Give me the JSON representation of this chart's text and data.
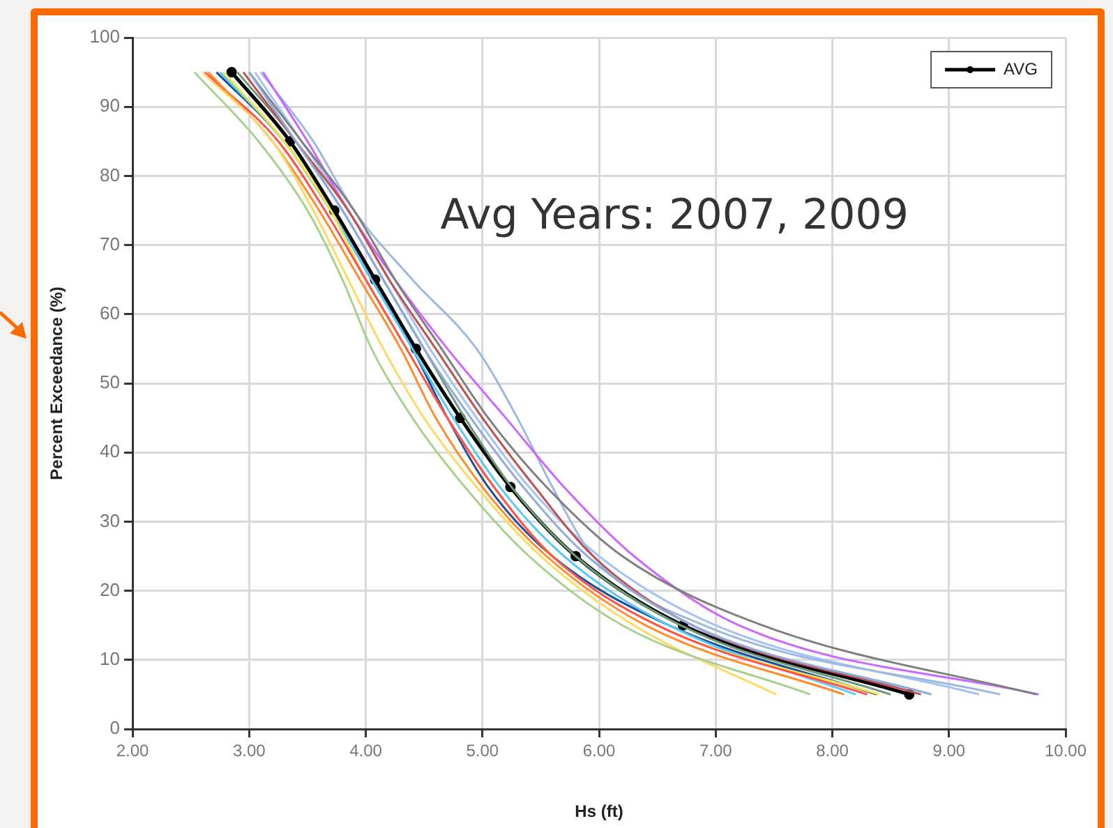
{
  "chart_data": {
    "type": "line",
    "xlabel": "Hs (ft)",
    "ylabel": "Percent Exceedance (%)",
    "annotations": [
      "Avg Years: 2007, 2009"
    ],
    "xlim": [
      2,
      10
    ],
    "xticks": [
      {
        "value": 2,
        "label": "2.00"
      },
      {
        "value": 3,
        "label": "3.00"
      },
      {
        "value": 4,
        "label": "4.00"
      },
      {
        "value": 5,
        "label": "5.00"
      },
      {
        "value": 6,
        "label": "6.00"
      },
      {
        "value": 7,
        "label": "7.00"
      },
      {
        "value": 8,
        "label": "8.00"
      },
      {
        "value": 9,
        "label": "9.00"
      },
      {
        "value": 10,
        "label": "10.00"
      }
    ],
    "ylim": [
      0,
      100
    ],
    "yticks": [
      0,
      10,
      20,
      30,
      40,
      50,
      60,
      70,
      80,
      90,
      100
    ],
    "grid": true,
    "legend": "top right",
    "series": [
      {
        "color": "#a9d18e",
        "x": [
          2.53,
          3.08,
          3.5,
          3.8,
          4.05,
          4.4,
          4.85,
          5.4,
          6.2,
          7.81
        ],
        "values": [
          95,
          85,
          75,
          65,
          55,
          45,
          35,
          25,
          15,
          5
        ]
      },
      {
        "color": "#ffd966",
        "x": [
          2.6,
          3.2,
          3.55,
          3.85,
          4.15,
          4.5,
          4.95,
          5.5,
          6.3,
          7.52
        ],
        "values": [
          95,
          85,
          75,
          65,
          55,
          45,
          35,
          25,
          15,
          5
        ]
      },
      {
        "color": "#ff8c2a",
        "x": [
          2.65,
          3.2,
          3.6,
          3.95,
          4.3,
          4.6,
          5.0,
          5.55,
          6.4,
          8.1
        ],
        "values": [
          95,
          85,
          75,
          65,
          55,
          45,
          35,
          25,
          15,
          5
        ]
      },
      {
        "color": "#ff5050",
        "x": [
          2.62,
          3.25,
          3.65,
          4.0,
          4.35,
          4.7,
          5.1,
          5.6,
          6.5,
          8.3
        ],
        "values": [
          95,
          85,
          75,
          65,
          55,
          45,
          35,
          25,
          15,
          5
        ]
      },
      {
        "color": "#f5e342",
        "x": [
          2.78,
          3.3,
          3.7,
          4.0,
          4.35,
          4.7,
          5.1,
          5.6,
          6.5,
          8.4
        ],
        "values": [
          95,
          85,
          75,
          65,
          55,
          45,
          35,
          25,
          15,
          5
        ]
      },
      {
        "color": "#5bc8f5",
        "x": [
          2.75,
          3.3,
          3.7,
          4.05,
          4.4,
          4.75,
          5.15,
          5.7,
          6.6,
          8.2
        ],
        "values": [
          95,
          85,
          75,
          65,
          55,
          45,
          35,
          25,
          15,
          5
        ]
      },
      {
        "color": "#1f4e99",
        "x": [
          2.72,
          3.3,
          3.7,
          4.05,
          4.4,
          4.7,
          5.05,
          5.6,
          6.6,
          8.38
        ],
        "values": [
          95,
          85,
          75,
          65,
          55,
          45,
          35,
          25,
          15,
          5
        ]
      },
      {
        "color": "#8faadc",
        "x": [
          3.0,
          3.4,
          3.8,
          4.15,
          4.5,
          4.9,
          5.35,
          5.9,
          6.8,
          8.85
        ],
        "values": [
          95,
          85,
          75,
          65,
          55,
          45,
          35,
          25,
          15,
          5
        ]
      },
      {
        "color": "#c0504d",
        "x": [
          2.95,
          3.4,
          3.85,
          4.2,
          4.6,
          5.0,
          5.45,
          5.95,
          6.8,
          8.76
        ],
        "values": [
          95,
          85,
          75,
          65,
          55,
          45,
          35,
          25,
          15,
          5
        ]
      },
      {
        "color": "#7f7f7f",
        "x": [
          3.0,
          3.45,
          3.9,
          4.25,
          4.65,
          5.05,
          5.55,
          6.2,
          7.4,
          9.75
        ],
        "values": [
          95,
          85,
          75,
          65,
          55,
          45,
          35,
          25,
          15,
          5
        ]
      },
      {
        "color": "#cc66ff",
        "x": [
          3.12,
          3.5,
          3.85,
          4.25,
          4.7,
          5.2,
          5.7,
          6.3,
          7.2,
          9.77
        ],
        "values": [
          95,
          85,
          75,
          65,
          55,
          45,
          35,
          25,
          15,
          5
        ]
      },
      {
        "color": "#9db9e0",
        "x": [
          3.1,
          3.55,
          3.9,
          4.4,
          4.95,
          5.3,
          5.6,
          5.95,
          6.9,
          9.44
        ],
        "values": [
          95,
          85,
          75,
          65,
          55,
          45,
          35,
          25,
          15,
          5
        ]
      },
      {
        "color": "#a4c2f4",
        "x": [
          3.05,
          3.45,
          3.85,
          4.2,
          4.55,
          4.95,
          5.4,
          6.0,
          7.0,
          9.26
        ],
        "values": [
          95,
          85,
          75,
          65,
          55,
          45,
          35,
          25,
          15,
          5
        ]
      },
      {
        "color": "#6a9a7a",
        "x": [
          2.9,
          3.4,
          3.8,
          4.15,
          4.5,
          4.85,
          5.25,
          5.8,
          6.7,
          8.5
        ],
        "values": [
          95,
          85,
          75,
          65,
          55,
          45,
          35,
          25,
          15,
          5
        ]
      },
      {
        "name": "AVG",
        "color": "#000000",
        "marker": "circle",
        "x": [
          2.85,
          3.35,
          3.73,
          4.08,
          4.43,
          4.81,
          5.24,
          5.8,
          6.72,
          8.66
        ],
        "values": [
          95,
          85,
          75,
          65,
          55,
          45,
          35,
          25,
          15,
          5
        ]
      }
    ]
  }
}
